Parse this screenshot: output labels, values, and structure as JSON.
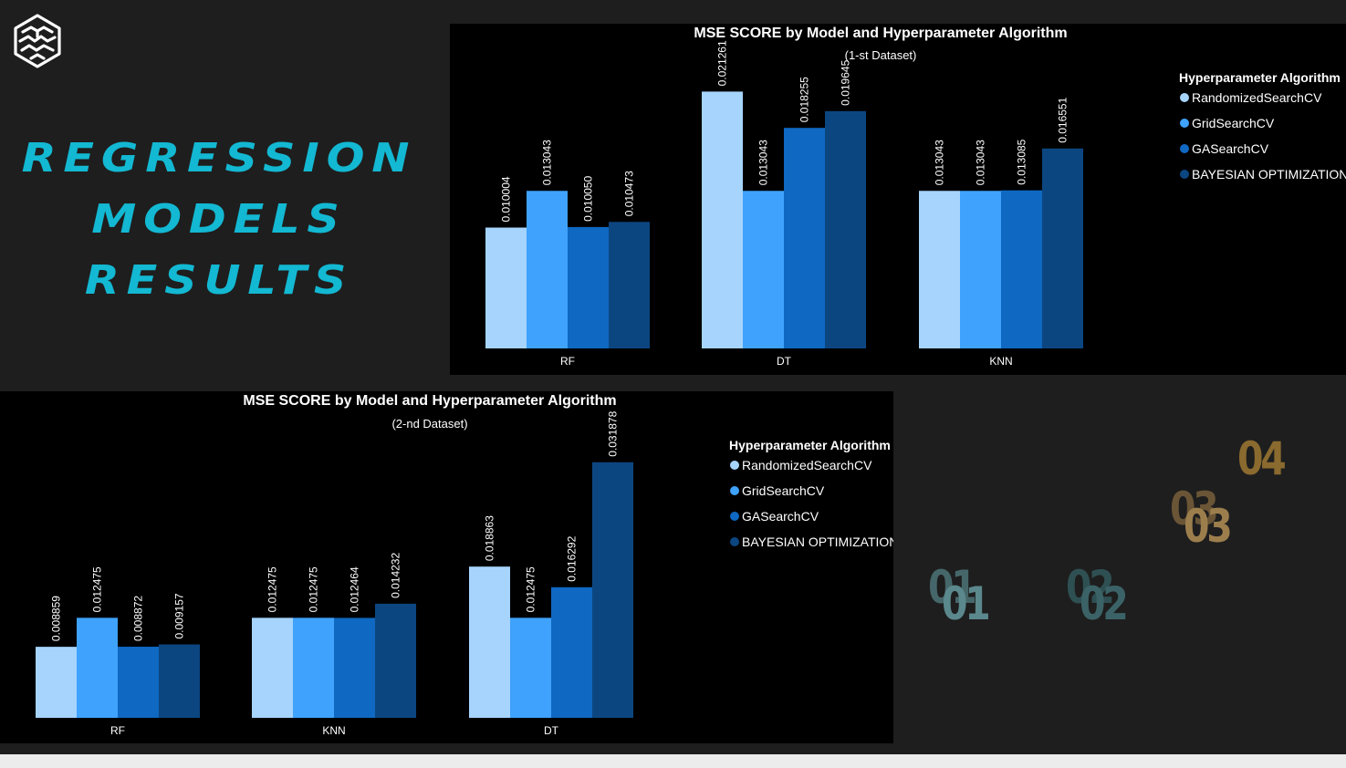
{
  "headline": {
    "line1": "REGRESSION",
    "line2": "MODELS",
    "line3": "RESULTS"
  },
  "colors": {
    "background": "#1e1e1e",
    "headline": "#13b8d2",
    "series": [
      "#a6d4fd",
      "#3fa2fc",
      "#0f68c2",
      "#0c4681"
    ],
    "deco_teal": "#5b888c",
    "deco_gold": "#a27f3e"
  },
  "icons": {
    "logo": "brain-icon"
  },
  "decoration": {
    "n01_back": "01",
    "n01_front": "01",
    "n02_back": "02",
    "n02_front": "02",
    "n03_back": "03",
    "n03_front": "03",
    "n04": "04"
  },
  "chart_data": [
    {
      "type": "bar",
      "title": "MSE SCORE by Model and Hyperparameter Algorithm",
      "subtitle": "(1-st Dataset)",
      "legend_title": "Hyperparameter Algorithm",
      "legend_position": "right",
      "grid": false,
      "ylim": [
        0,
        0.0225
      ],
      "categories": [
        "RF",
        "DT",
        "KNN"
      ],
      "series": [
        {
          "name": "RandomizedSearchCV",
          "values": [
            0.010004,
            0.021261,
            0.013043
          ],
          "labels": [
            "0.010004",
            "0.021261",
            "0.013043"
          ]
        },
        {
          "name": "GridSearchCV",
          "values": [
            0.013043,
            0.013043,
            0.013043
          ],
          "labels": [
            "0.013043",
            "0.013043",
            "0.013043"
          ]
        },
        {
          "name": "GASearchCV",
          "values": [
            0.01005,
            0.018255,
            0.013085
          ],
          "labels": [
            "0.010050",
            "0.018255",
            "0.013085"
          ]
        },
        {
          "name": "BAYESIAN OPTIMIZATION",
          "values": [
            0.010473,
            0.019645,
            0.016551
          ],
          "labels": [
            "0.010473",
            "0.019645",
            "0.016551"
          ]
        }
      ]
    },
    {
      "type": "bar",
      "title": "MSE SCORE by Model and Hyperparameter Algorithm",
      "subtitle": "(2-nd Dataset)",
      "legend_title": "Hyperparameter Algorithm",
      "legend_position": "right",
      "grid": false,
      "ylim": [
        0,
        0.0339
      ],
      "categories": [
        "RF",
        "KNN",
        "DT"
      ],
      "series": [
        {
          "name": "RandomizedSearchCV",
          "values": [
            0.008859,
            0.012475,
            0.018863
          ],
          "labels": [
            "0.008859",
            "0.012475",
            "0.018863"
          ]
        },
        {
          "name": "GridSearchCV",
          "values": [
            0.012475,
            0.012475,
            0.012475
          ],
          "labels": [
            "0.012475",
            "0.012475",
            "0.012475"
          ]
        },
        {
          "name": "GASearchCV",
          "values": [
            0.008872,
            0.012464,
            0.016292
          ],
          "labels": [
            "0.008872",
            "0.012464",
            "0.016292"
          ]
        },
        {
          "name": "BAYESIAN OPTIMIZATION",
          "values": [
            0.009157,
            0.014232,
            0.031878
          ],
          "labels": [
            "0.009157",
            "0.014232",
            "0.031878"
          ]
        }
      ]
    }
  ]
}
